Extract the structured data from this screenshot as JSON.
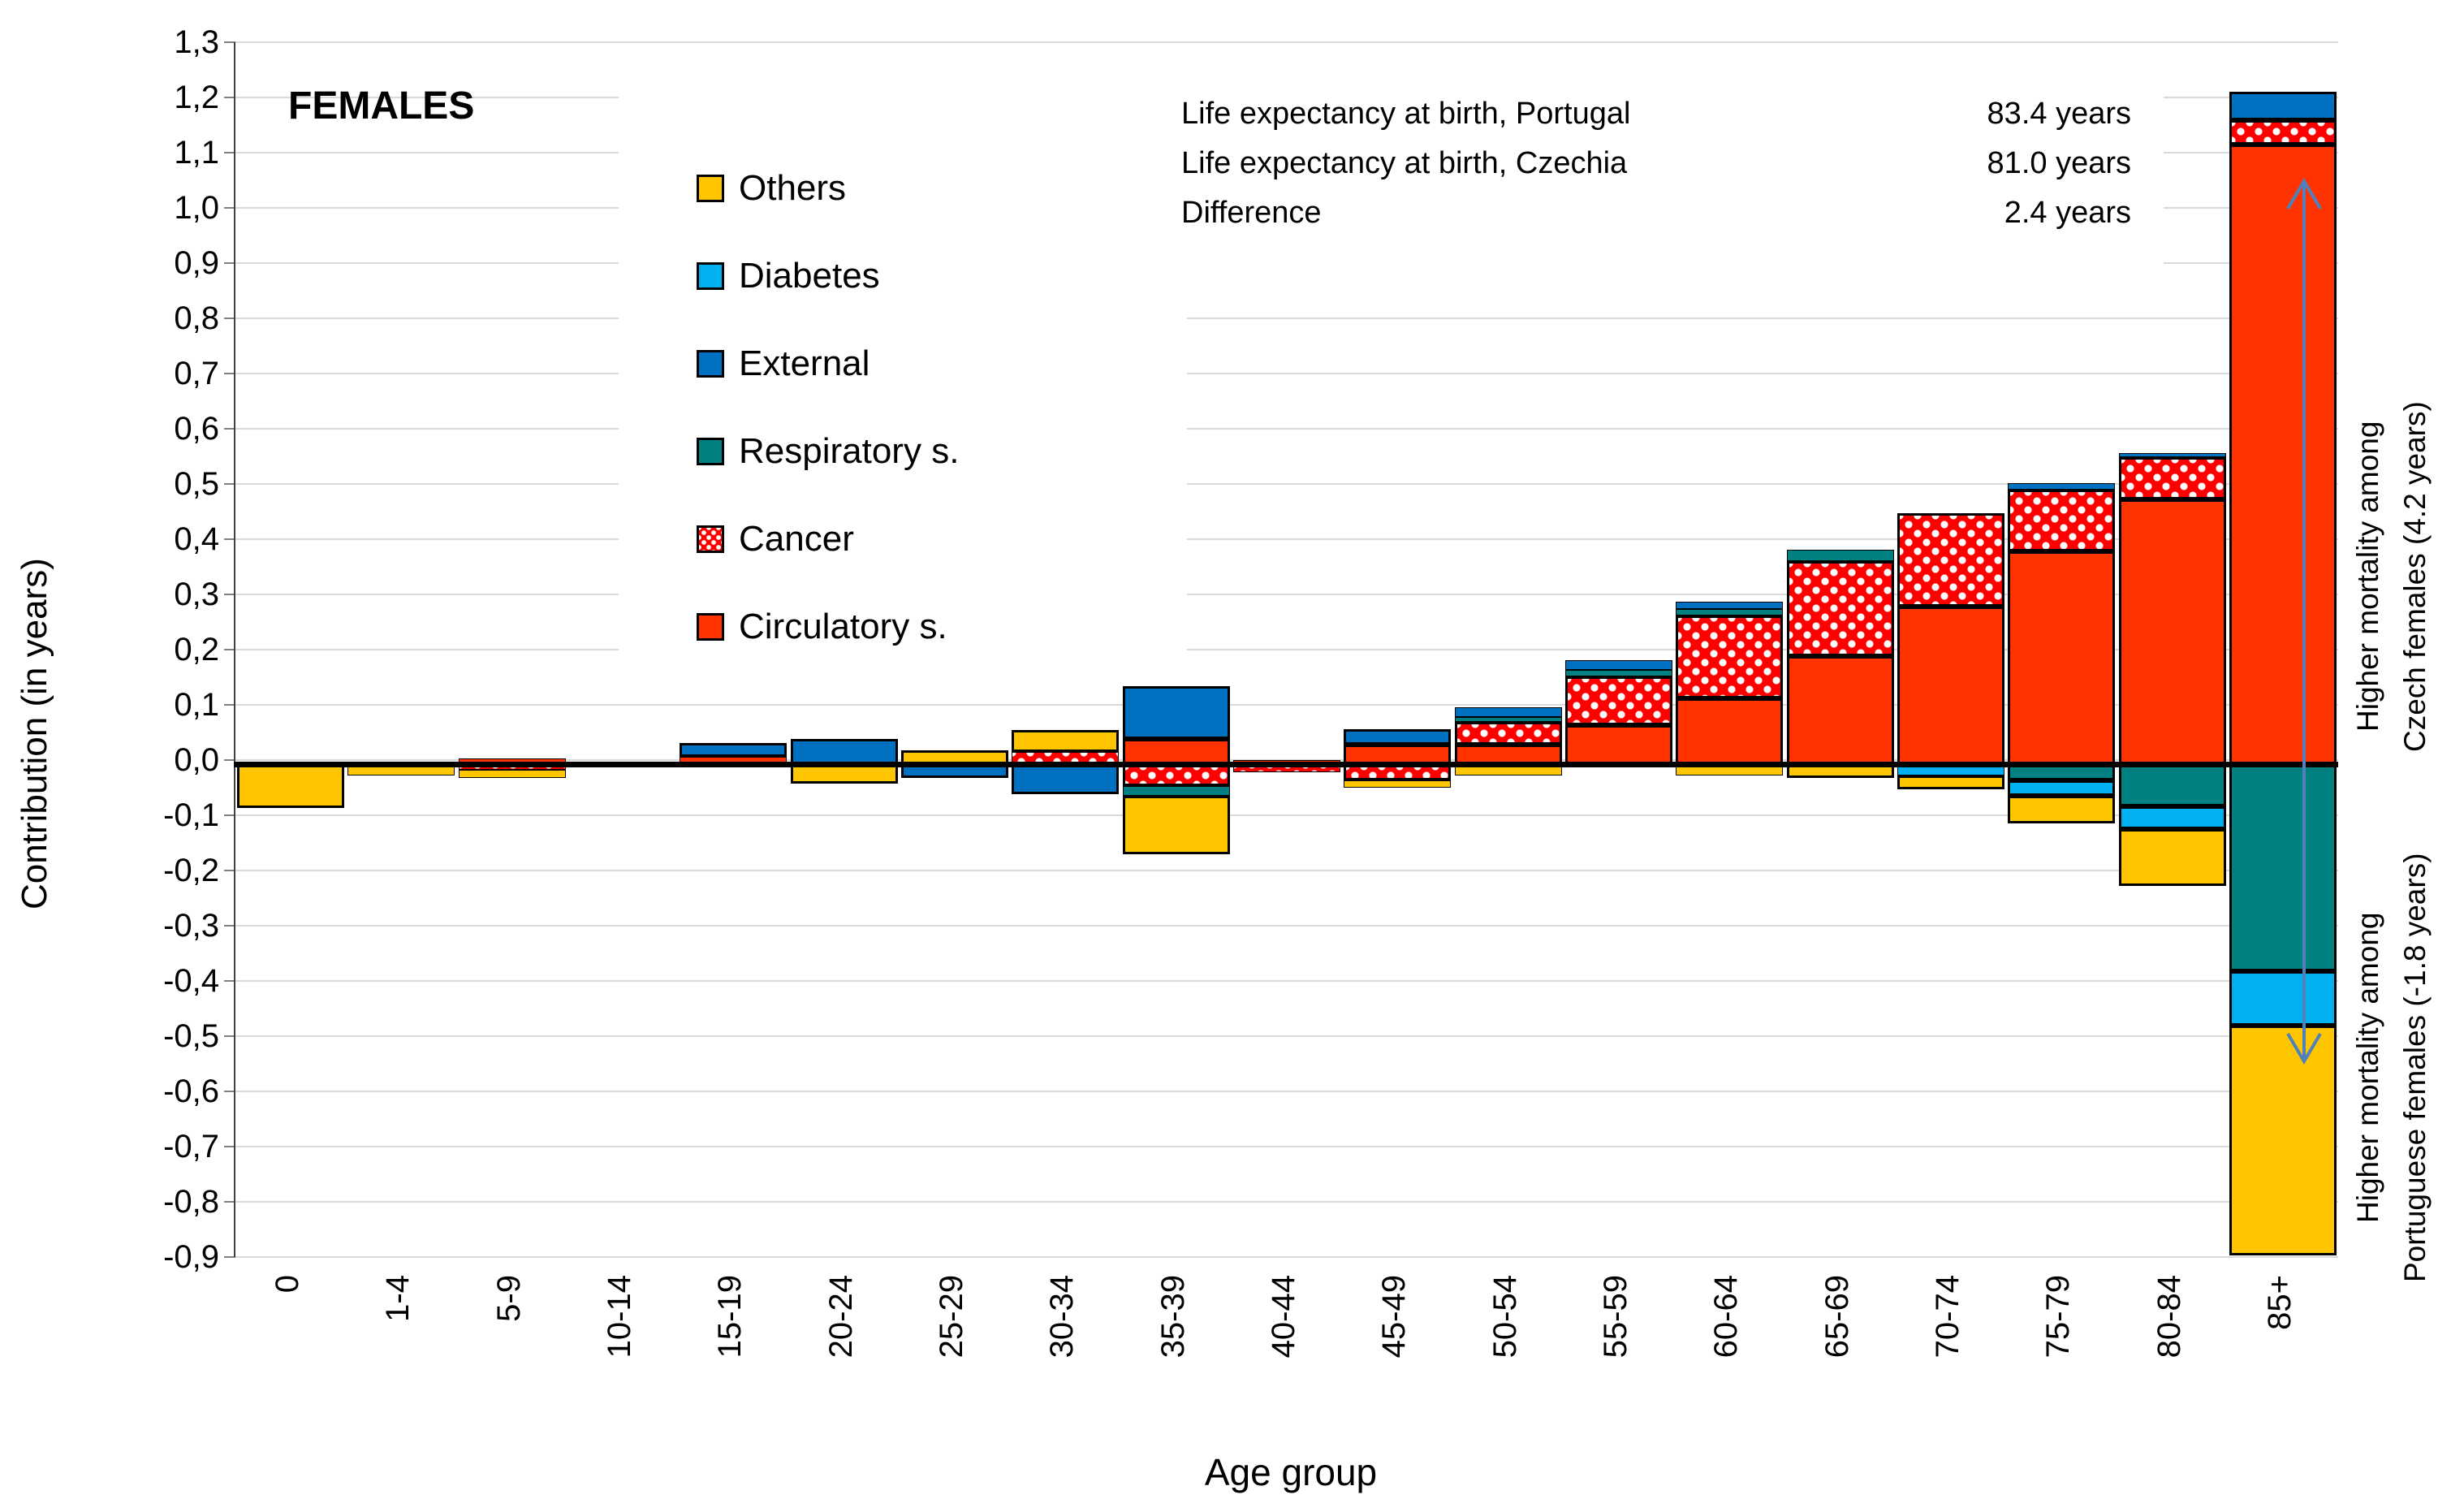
{
  "title": "FEMALES",
  "y_axis": {
    "title": "Contribution (in years)",
    "tick_labels": [
      "1,3",
      "1,2",
      "1,1",
      "1,0",
      "0,9",
      "0,8",
      "0,7",
      "0,6",
      "0,5",
      "0,4",
      "0,3",
      "0,2",
      "0,1",
      "0,0",
      "-0,1",
      "-0,2",
      "-0,3",
      "-0,4",
      "-0,5",
      "-0,6",
      "-0,7",
      "-0,8",
      "-0,9"
    ],
    "min": -0.9,
    "max": 1.3,
    "step": 0.1
  },
  "x_axis": {
    "title": "Age group"
  },
  "info_block": {
    "rows": [
      {
        "label": "Life expectancy at birth, Portugal",
        "value": "83.4 years"
      },
      {
        "label": "Life expectancy at birth, Czechia",
        "value": "81.0 years"
      },
      {
        "label": "Difference",
        "value": "2.4 years"
      }
    ]
  },
  "legend": [
    {
      "label": "Others",
      "color": "#FFC600",
      "pattern": "solid"
    },
    {
      "label": "Diabetes",
      "color": "#00B0F0",
      "pattern": "solid"
    },
    {
      "label": "External",
      "color": "#0070C0",
      "pattern": "solid"
    },
    {
      "label": "Respiratory s.",
      "color": "#008080",
      "pattern": "solid"
    },
    {
      "label": "Cancer",
      "color": "#FF0000",
      "pattern": "white-dots"
    },
    {
      "label": "Circulatory s.",
      "color": "#FF3300",
      "pattern": "solid"
    }
  ],
  "annotations": {
    "top_arrow_note": "Higher mortality among\nCzech females (4.2 years)",
    "bottom_arrow_note": "Higher mortality among\nPortuguese females (-1.8 years)",
    "arrow_color": "#4F81BD"
  },
  "colors": {
    "gridline": "#D9D9D9",
    "axis": "#404040",
    "zero_line": "#000000",
    "bar_border": "#000000"
  },
  "chart_data": {
    "type": "bar",
    "stacked": true,
    "title": "FEMALES",
    "xlabel": "Age group",
    "ylabel": "Contribution (in years)",
    "ylim": [
      -0.9,
      1.3
    ],
    "grid": true,
    "legend_position": "upper-left-inside",
    "categories": [
      "0",
      "1-4",
      "5-9",
      "10-14",
      "15-19",
      "20-24",
      "25-29",
      "30-34",
      "35-39",
      "40-44",
      "45-49",
      "50-54",
      "55-59",
      "60-64",
      "65-69",
      "70-74",
      "75-79",
      "80-84",
      "85+"
    ],
    "stack_order_from_axis": [
      "Circulatory s.",
      "Cancer",
      "Respiratory s.",
      "External",
      "Diabetes",
      "Others"
    ],
    "series": [
      {
        "name": "Circulatory s.",
        "color": "#FF3300",
        "values": [
          0,
          0,
          0.01,
          0.005,
          0.013,
          0,
          0,
          0,
          0.046,
          0.008,
          0.035,
          0.035,
          0.07,
          0.119,
          0.196,
          0.285,
          0.385,
          0.479,
          1.122
        ]
      },
      {
        "name": "Cancer",
        "color": "#FF0000",
        "pattern": "white-dots",
        "values": [
          0,
          0,
          -0.01,
          0,
          0,
          0,
          0,
          0.022,
          -0.04,
          -0.015,
          -0.03,
          0.042,
          0.089,
          0.15,
          0.172,
          0.17,
          0.112,
          0.077,
          0.044
        ]
      },
      {
        "name": "Respiratory s.",
        "color": "#008080",
        "values": [
          0,
          0,
          0,
          0,
          0,
          0,
          0,
          0,
          -0.018,
          0,
          0,
          0.008,
          0.012,
          0.012,
          0.02,
          -0.005,
          -0.03,
          -0.077,
          -0.375
        ]
      },
      {
        "name": "External",
        "color": "#0070C0",
        "values": [
          0,
          0,
          0,
          0,
          0.025,
          0.045,
          -0.025,
          -0.055,
          0.095,
          0,
          0.028,
          0.018,
          0.017,
          0.013,
          0,
          0,
          0.012,
          0.007,
          0.051
        ]
      },
      {
        "name": "Diabetes",
        "color": "#00B0F0",
        "values": [
          0,
          0,
          0,
          0,
          0,
          0,
          0,
          0,
          0,
          0,
          0,
          0,
          0,
          0,
          0,
          -0.015,
          -0.028,
          -0.04,
          -0.098
        ]
      },
      {
        "name": "Others",
        "color": "#FFC600",
        "values": [
          -0.08,
          -0.02,
          -0.015,
          -0.005,
          -0.005,
          -0.035,
          0.025,
          0.04,
          -0.105,
          0,
          -0.012,
          -0.02,
          0,
          -0.02,
          -0.025,
          -0.025,
          -0.05,
          -0.103,
          -0.417
        ]
      }
    ],
    "totals": {
      "positive_sum_years": 4.2,
      "negative_sum_years": -1.8,
      "net_difference_years": 2.4
    }
  }
}
